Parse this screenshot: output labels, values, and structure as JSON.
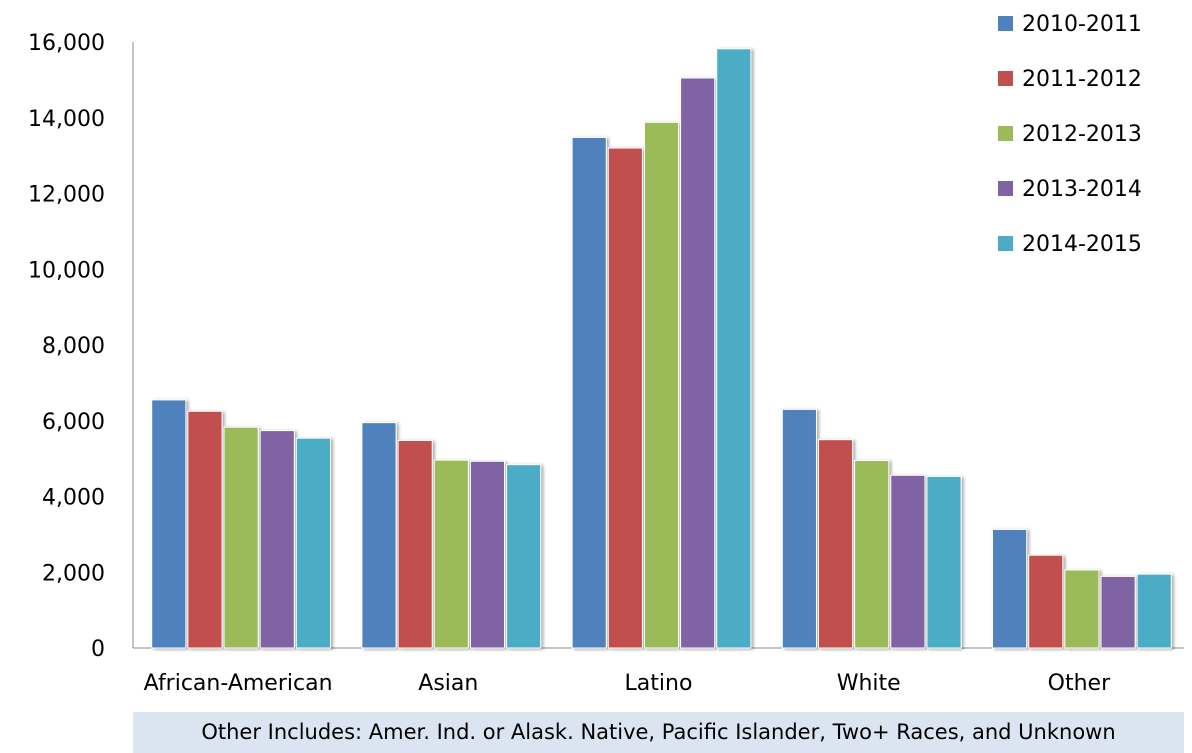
{
  "chart_data": {
    "type": "bar",
    "categories": [
      "African-American",
      "Asian",
      "Latino",
      "White",
      "Other"
    ],
    "series": [
      {
        "name": "2010-2011",
        "color": "#4f81bd",
        "values": [
          6550,
          5950,
          13480,
          6300,
          3130
        ]
      },
      {
        "name": "2011-2012",
        "color": "#c0504d",
        "values": [
          6250,
          5480,
          13200,
          5500,
          2450
        ]
      },
      {
        "name": "2012-2013",
        "color": "#9bbb59",
        "values": [
          5830,
          4960,
          13880,
          4950,
          2060
        ]
      },
      {
        "name": "2013-2014",
        "color": "#8064a2",
        "values": [
          5740,
          4930,
          15050,
          4560,
          1890
        ]
      },
      {
        "name": "2014-2015",
        "color": "#4bacc6",
        "values": [
          5540,
          4840,
          15820,
          4530,
          1950
        ]
      }
    ],
    "ylim": [
      0,
      16000
    ],
    "yticks": [
      0,
      2000,
      4000,
      6000,
      8000,
      10000,
      12000,
      14000,
      16000
    ],
    "ytick_labels": [
      "0",
      "2,000",
      "4,000",
      "6,000",
      "8,000",
      "10,000",
      "12,000",
      "14,000",
      "16,000"
    ],
    "legend_position": "top-right",
    "grid": false
  },
  "footnote": "Other Includes: Amer. Ind. or Alask. Native, Pacific Islander, Two+ Races, and Unknown"
}
